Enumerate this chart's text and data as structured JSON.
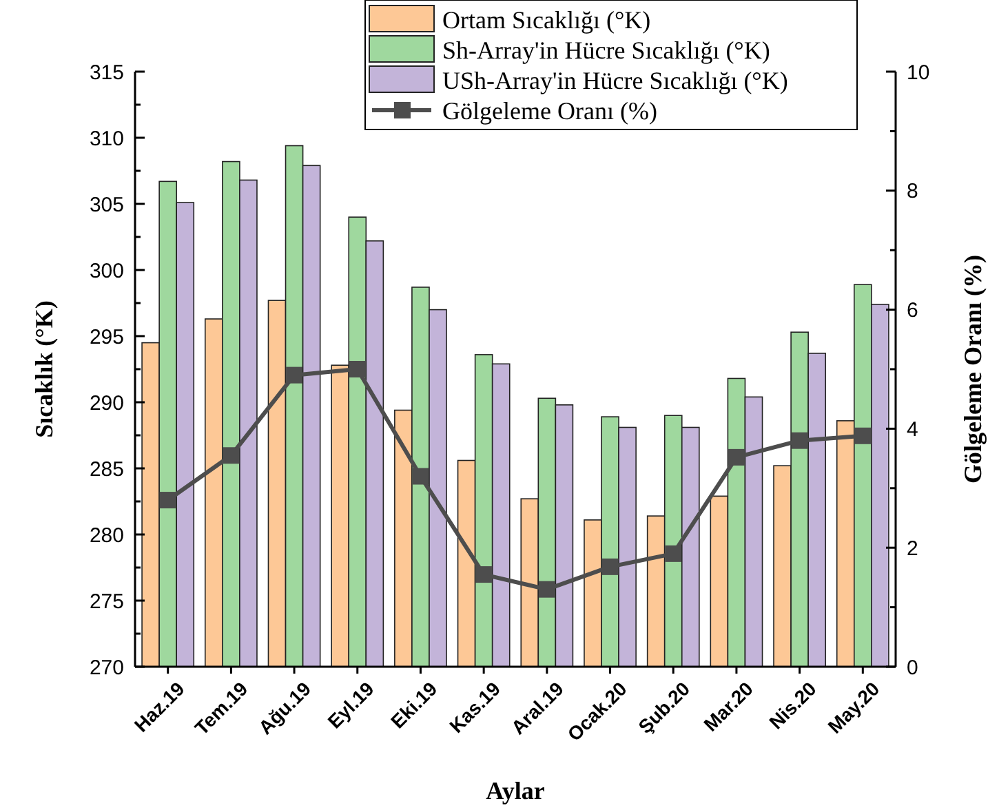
{
  "chart_data": {
    "type": "bar",
    "xlabel": "Aylar",
    "ylabel": "Sıcaklık (°K)",
    "y2label": "Gölgeleme Oranı (%)",
    "categories": [
      "Haz.19",
      "Tem.19",
      "Ağu.19",
      "Eyl.19",
      "Eki.19",
      "Kas.19",
      "Aral.19",
      "Ocak.20",
      "Şub.20",
      "Mar.20",
      "Nis.20",
      "May.20"
    ],
    "series": [
      {
        "name": "Ortam Sıcaklığı (°K)",
        "color": "#fdc896",
        "values": [
          294.5,
          296.3,
          297.7,
          292.8,
          289.4,
          285.6,
          282.7,
          281.1,
          281.4,
          282.9,
          285.2,
          288.6
        ]
      },
      {
        "name": "Sh-Array'in Hücre Sıcaklığı (°K)",
        "color": "#9fd89e",
        "values": [
          306.7,
          308.2,
          309.4,
          304.0,
          298.7,
          293.6,
          290.3,
          288.9,
          289.0,
          291.8,
          295.3,
          298.9
        ]
      },
      {
        "name": "USh-Array'in Hücre Sıcaklığı (°K)",
        "color": "#c3b4d9",
        "values": [
          305.1,
          306.8,
          307.9,
          302.2,
          297.0,
          292.9,
          289.8,
          288.1,
          288.1,
          290.4,
          293.7,
          297.4
        ]
      },
      {
        "name": "Gölgeleme Oranı (%)",
        "color": "#4d4d4d",
        "type": "line",
        "axis": "y2",
        "marker": "square",
        "values": [
          2.8,
          3.55,
          4.9,
          5.0,
          3.2,
          1.55,
          1.3,
          1.68,
          1.9,
          3.52,
          3.8,
          3.88
        ]
      }
    ],
    "ylim": [
      270,
      315
    ],
    "yticks": [
      270,
      {
        "value": 272.5,
        "label": null
      },
      275,
      {
        "value": 277.5,
        "label": null
      },
      280,
      {
        "value": 282.5,
        "label": null
      },
      285,
      {
        "value": 287.5,
        "label": null
      },
      290,
      {
        "value": 292.5,
        "label": null
      },
      295,
      {
        "value": 297.5,
        "label": null
      },
      300,
      {
        "value": 302.5,
        "label": null
      },
      305,
      {
        "value": 307.5,
        "label": null
      },
      310,
      {
        "value": 312.5,
        "label": null
      },
      315
    ],
    "y2lim": [
      0,
      10
    ],
    "y2ticks": [
      0,
      {
        "value": 1,
        "label": null
      },
      2,
      {
        "value": 3,
        "label": null
      },
      4,
      {
        "value": 5,
        "label": null
      },
      6,
      {
        "value": 7,
        "label": null
      },
      8,
      {
        "value": 9,
        "label": null
      },
      10
    ],
    "grid": false,
    "legend": "top"
  }
}
